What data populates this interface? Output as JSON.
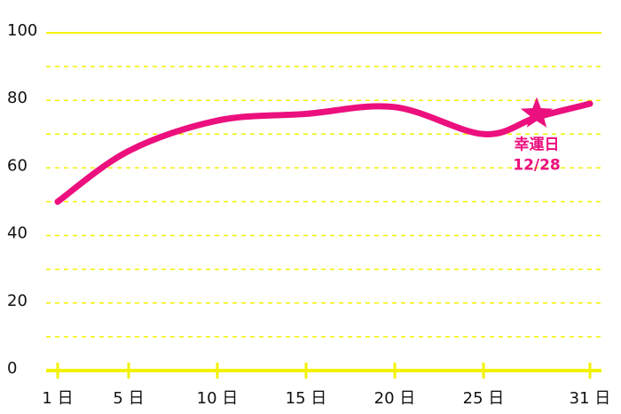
{
  "chart_data": {
    "type": "line",
    "x": [
      1,
      5,
      10,
      15,
      20,
      25,
      28,
      31
    ],
    "series": [
      {
        "color": "#ec0f7e",
        "values": [
          50,
          65,
          74,
          76,
          78,
          70,
          75,
          79
        ]
      }
    ],
    "xlim": [
      1,
      31
    ],
    "xticks": [
      {
        "value": 1,
        "label": "1 日"
      },
      {
        "value": 5,
        "label": "5 日"
      },
      {
        "value": 10,
        "label": "10 日"
      },
      {
        "value": 15,
        "label": "15 日"
      },
      {
        "value": 20,
        "label": "20 日"
      },
      {
        "value": 25,
        "label": "25 日"
      },
      {
        "value": 31,
        "label": "31 日"
      }
    ],
    "ylim": [
      0,
      100
    ],
    "yticks": [
      0,
      20,
      40,
      60,
      80,
      100
    ],
    "yminor": [
      10,
      30,
      50,
      70,
      90
    ],
    "grid": true,
    "grid_color": "#f2f200",
    "annotation": {
      "x": 28,
      "y": 76,
      "label": "幸運日",
      "date": "12/28"
    }
  }
}
